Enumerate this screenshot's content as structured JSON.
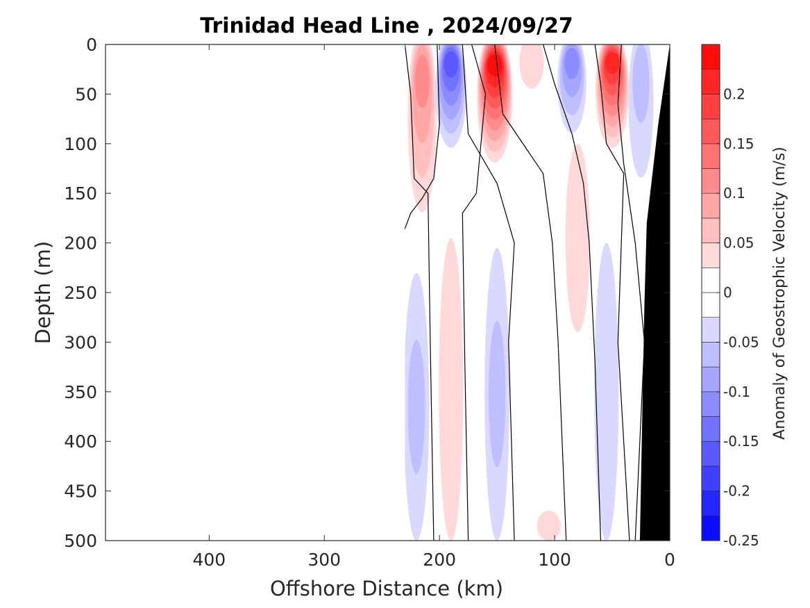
{
  "chart_data": {
    "type": "heatmap",
    "subtype": "filled-contour section",
    "title": "Trinidad Head Line , 2024/09/27",
    "xlabel": "Offshore Distance (km)",
    "ylabel": "Depth (m)",
    "xlim": [
      490,
      0
    ],
    "x_reversed": true,
    "ylim": [
      0,
      500
    ],
    "y_reversed": true,
    "xticks": [
      400,
      300,
      200,
      100,
      0
    ],
    "yticks": [
      0,
      50,
      100,
      150,
      200,
      250,
      300,
      350,
      400,
      450,
      500
    ],
    "grid": false,
    "colorbar": {
      "label": "Anomaly of Geostrophic Velocity (m/s)",
      "range": [
        -0.25,
        0.25
      ],
      "levels": [
        -0.25,
        -0.225,
        -0.2,
        -0.175,
        -0.15,
        -0.125,
        -0.1,
        -0.075,
        -0.05,
        -0.025,
        0,
        0.025,
        0.05,
        0.075,
        0.1,
        0.125,
        0.15,
        0.175,
        0.2,
        0.225,
        0.25
      ],
      "ticks": [
        -0.25,
        -0.2,
        -0.15,
        -0.1,
        -0.05,
        0,
        0.05,
        0.1,
        0.15,
        0.2
      ],
      "tick_labels": [
        "-0.25",
        "-0.2",
        "-0.15",
        "-0.1",
        "-0.05",
        "0",
        "0.05",
        "0.1",
        "0.15",
        "0.2"
      ],
      "colormap": "blue-white-red",
      "negative_color": "#0000ff",
      "positive_color": "#ff0000"
    },
    "data_extent_x": [
      230,
      0
    ],
    "bottom_mask_color": "#000000",
    "features": [
      {
        "x": 215,
        "depth_top": 0,
        "depth_bottom": 165,
        "peak_value": 0.12
      },
      {
        "x": 190,
        "depth_top": 0,
        "depth_bottom": 100,
        "peak_value": -0.16
      },
      {
        "x": 152,
        "depth_top": 0,
        "depth_bottom": 115,
        "peak_value": 0.24
      },
      {
        "x": 120,
        "depth_top": 0,
        "depth_bottom": 40,
        "peak_value": 0.04
      },
      {
        "x": 85,
        "depth_top": 0,
        "depth_bottom": 85,
        "peak_value": -0.12
      },
      {
        "x": 50,
        "depth_top": 0,
        "depth_bottom": 100,
        "peak_value": 0.2
      },
      {
        "x": 25,
        "depth_top": 0,
        "depth_bottom": 130,
        "peak_value": -0.05
      },
      {
        "x": 190,
        "depth_top": 195,
        "depth_bottom": 500,
        "peak_value": 0.04
      },
      {
        "x": 150,
        "depth_top": 205,
        "depth_bottom": 500,
        "peak_value": -0.05
      },
      {
        "x": 220,
        "depth_top": 230,
        "depth_bottom": 500,
        "peak_value": -0.06
      },
      {
        "x": 80,
        "depth_top": 100,
        "depth_bottom": 290,
        "peak_value": 0.04
      },
      {
        "x": 55,
        "depth_top": 200,
        "depth_bottom": 500,
        "peak_value": -0.04
      },
      {
        "x": 105,
        "depth_top": 470,
        "depth_bottom": 500,
        "peak_value": 0.03
      }
    ],
    "zero_contours": [
      {
        "points": [
          [
            233,
            195
          ],
          [
            225,
            170
          ],
          [
            215,
            155
          ],
          [
            205,
            135
          ],
          [
            200,
            80
          ],
          [
            202,
            0
          ]
        ]
      },
      {
        "points": [
          [
            205,
            500
          ],
          [
            208,
            300
          ],
          [
            210,
            150
          ],
          [
            222,
            135
          ],
          [
            225,
            50
          ],
          [
            230,
            0
          ]
        ]
      },
      {
        "points": [
          [
            175,
            500
          ],
          [
            178,
            320
          ],
          [
            180,
            170
          ],
          [
            168,
            150
          ],
          [
            160,
            50
          ],
          [
            172,
            0
          ]
        ]
      },
      {
        "points": [
          [
            135,
            500
          ],
          [
            140,
            300
          ],
          [
            135,
            200
          ],
          [
            150,
            140
          ],
          [
            175,
            90
          ],
          [
            180,
            0
          ]
        ]
      },
      {
        "points": [
          [
            90,
            500
          ],
          [
            97,
            300
          ],
          [
            102,
            200
          ],
          [
            110,
            130
          ],
          [
            145,
            70
          ],
          [
            152,
            0
          ]
        ]
      },
      {
        "points": [
          [
            60,
            500
          ],
          [
            65,
            320
          ],
          [
            70,
            200
          ],
          [
            75,
            140
          ],
          [
            85,
            90
          ],
          [
            100,
            40
          ],
          [
            110,
            0
          ]
        ]
      },
      {
        "points": [
          [
            35,
            500
          ],
          [
            45,
            300
          ],
          [
            40,
            130
          ],
          [
            55,
            100
          ],
          [
            60,
            40
          ],
          [
            65,
            0
          ]
        ]
      },
      {
        "points": [
          [
            30,
            500
          ],
          [
            22,
            300
          ],
          [
            30,
            200
          ],
          [
            40,
            120
          ],
          [
            45,
            60
          ],
          [
            42,
            0
          ]
        ]
      }
    ]
  }
}
